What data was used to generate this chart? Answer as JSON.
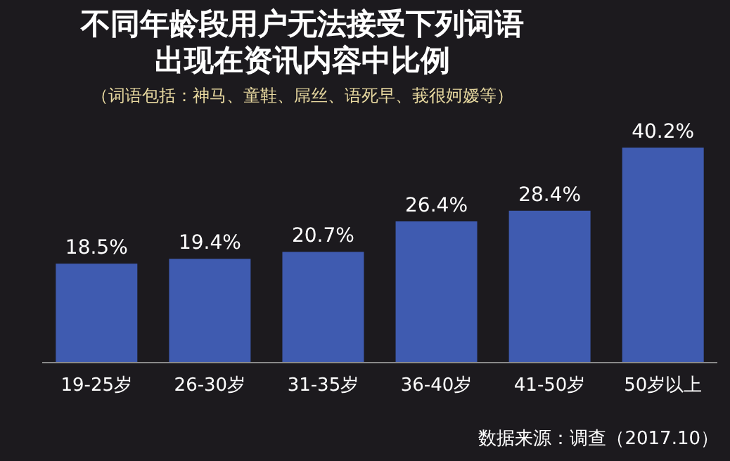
{
  "chart_data": {
    "type": "bar",
    "title": "不同年龄段用户无法接受下列词语出现在资讯内容中比例",
    "subtitle": "（词语包括：神马、童鞋、屌丝、语死早、莪很妸嫒等）",
    "categories": [
      "19-25岁",
      "26-30岁",
      "31-35岁",
      "36-40岁",
      "41-50岁",
      "50岁以上"
    ],
    "values": [
      18.5,
      19.4,
      20.7,
      26.4,
      28.4,
      40.2
    ],
    "value_labels": [
      "18.5%",
      "19.4%",
      "20.7%",
      "26.4%",
      "28.4%",
      "40.2%"
    ],
    "color": "#3f5bb0",
    "annotations": [
      "数据来源：调查（2017.10）"
    ]
  }
}
